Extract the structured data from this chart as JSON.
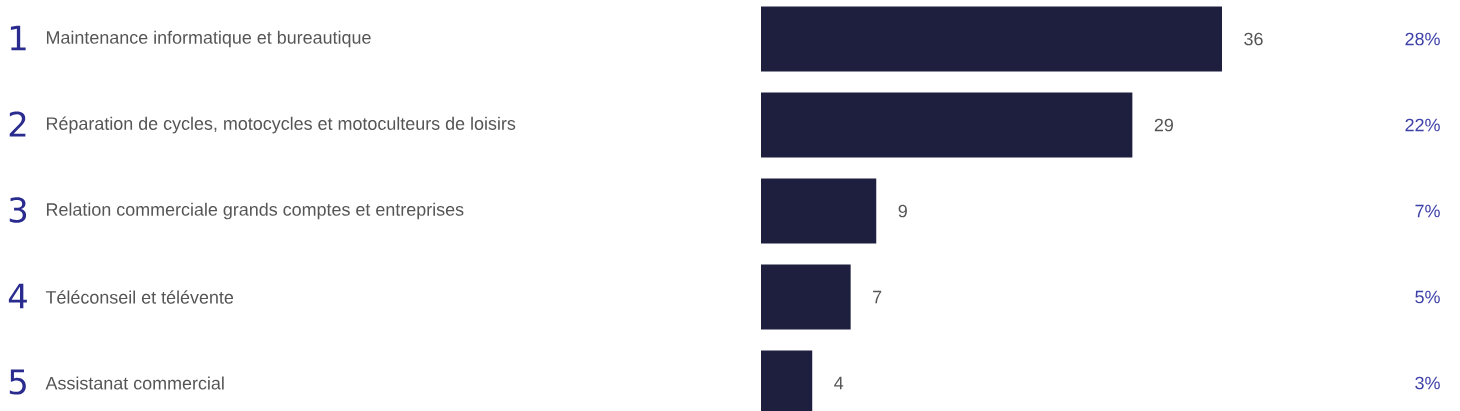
{
  "chart_data": {
    "type": "bar",
    "orientation": "horizontal",
    "categories": [
      "Maintenance informatique et bureautique",
      "Réparation de cycles, motocycles et motoculteurs de loisirs",
      "Relation commerciale grands comptes et entreprises",
      "Téléconseil et télévente",
      "Assistanat commercial"
    ],
    "values": [
      36,
      29,
      9,
      7,
      4
    ],
    "value_labels": [
      "36",
      "29",
      "9",
      "7",
      "4"
    ],
    "color": "#1e1f3f",
    "annotations": [
      "1",
      "2",
      "3",
      "4",
      "5",
      "28%",
      "22%",
      "7%",
      "5%",
      "3%"
    ]
  }
}
